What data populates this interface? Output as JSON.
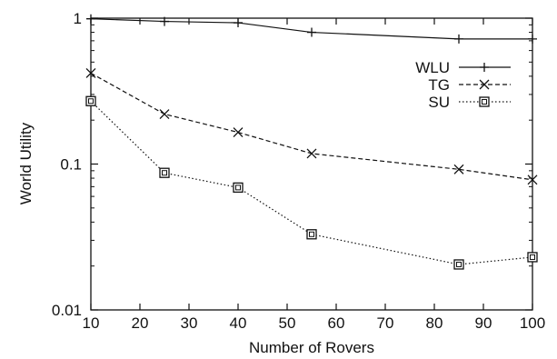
{
  "chart_data": {
    "type": "line",
    "title": "",
    "xlabel": "Number of Rovers",
    "ylabel": "World Utility",
    "x_scale": "linear",
    "y_scale": "log",
    "xlim": [
      10,
      100
    ],
    "ylim": [
      0.01,
      1
    ],
    "x_ticks": [
      10,
      20,
      30,
      40,
      50,
      60,
      70,
      80,
      90,
      100
    ],
    "x_tick_labels": [
      "10",
      "20",
      "30",
      "40",
      "50",
      "60",
      "70",
      "80",
      "90",
      "100"
    ],
    "y_ticks": [
      0.01,
      0.1,
      1
    ],
    "y_tick_labels": [
      "0.01",
      "0.1",
      "1"
    ],
    "grid": false,
    "legend_position": "top-right",
    "x": [
      10,
      25,
      40,
      55,
      85,
      100
    ],
    "series": [
      {
        "name": "WLU",
        "marker": "plus",
        "line": "solid",
        "values": [
          0.99,
          0.95,
          0.93,
          0.8,
          0.72,
          0.72
        ]
      },
      {
        "name": "TG",
        "marker": "cross",
        "line": "dashed",
        "values": [
          0.42,
          0.22,
          0.165,
          0.118,
          0.092,
          0.078
        ]
      },
      {
        "name": "SU",
        "marker": "square",
        "line": "dotted",
        "values": [
          0.27,
          0.087,
          0.069,
          0.033,
          0.0205,
          0.023
        ]
      }
    ]
  }
}
